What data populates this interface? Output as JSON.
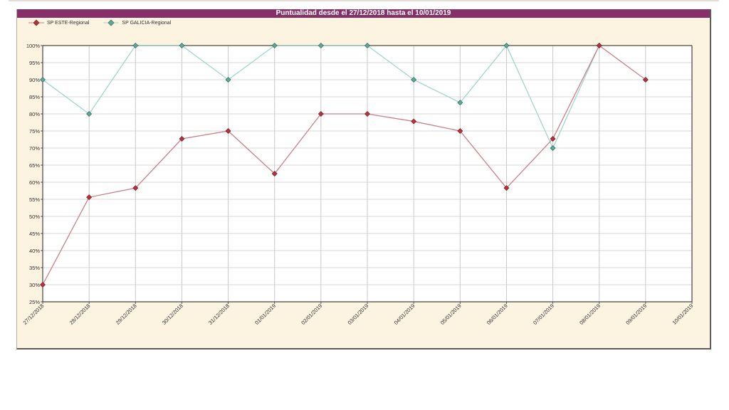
{
  "title": "Puntualidad desde el 27/12/2018 hasta el 10/01/2019",
  "legend": [
    {
      "label": "SP ESTE-Regional",
      "color": "#b8323c",
      "line": "#c9808a"
    },
    {
      "label": "SP GALICIA-Regional",
      "color": "#5fa898",
      "line": "#9fd6cc"
    }
  ],
  "chart_data": {
    "type": "line",
    "title": "Puntualidad desde el 27/12/2018 hasta el 10/01/2019",
    "xlabel": "",
    "ylabel": "",
    "ylim": [
      25,
      100
    ],
    "y_ticks": [
      "25%",
      "30%",
      "35%",
      "40%",
      "45%",
      "50%",
      "55%",
      "60%",
      "65%",
      "70%",
      "75%",
      "80%",
      "85%",
      "90%",
      "95%",
      "100%"
    ],
    "categories": [
      "27/12/2018",
      "28/12/2018",
      "29/12/2018",
      "30/12/2018",
      "31/12/2018",
      "01/01/2019",
      "02/01/2019",
      "03/01/2019",
      "04/01/2019",
      "05/01/2019",
      "06/01/2019",
      "07/01/2019",
      "08/01/2019",
      "09/01/2019",
      "10/01/2019"
    ],
    "series": [
      {
        "name": "SP ESTE-Regional",
        "values": [
          30,
          55.6,
          58.3,
          72.7,
          75,
          62.5,
          80,
          80,
          77.8,
          75,
          58.3,
          72.7,
          100,
          90,
          null
        ]
      },
      {
        "name": "SP GALICIA-Regional",
        "values": [
          90,
          80,
          100,
          100,
          90,
          100,
          100,
          100,
          90,
          83.3,
          100,
          70,
          100,
          null,
          null
        ]
      }
    ],
    "grid": true,
    "legend_position": "top-left"
  }
}
